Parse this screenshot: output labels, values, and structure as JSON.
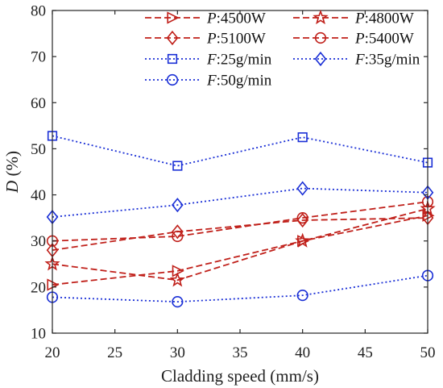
{
  "chart_data": {
    "type": "line",
    "title": "",
    "xlabel": "Cladding speed (mm/s)",
    "ylabel_var": "D",
    "ylabel_unit": " (%)",
    "x": [
      20,
      30,
      40,
      50
    ],
    "xlim": [
      20,
      50
    ],
    "ylim": [
      10,
      80
    ],
    "xticks": [
      "20",
      "25",
      "30",
      "35",
      "40",
      "45",
      "50"
    ],
    "yticks": [
      "10",
      "20",
      "30",
      "40",
      "50",
      "60",
      "70",
      "80"
    ],
    "grid": false,
    "legend_position": "top",
    "series": [
      {
        "prefix": "P",
        "value": ":4500W",
        "color": "#c0201a",
        "dash": "dashed",
        "marker": "triangle-right",
        "values": [
          20.5,
          23.5,
          30.0,
          35.5
        ]
      },
      {
        "prefix": "P",
        "value": ":4800W",
        "color": "#c0201a",
        "dash": "dashed",
        "marker": "star",
        "values": [
          25.0,
          21.5,
          30.0,
          37.0
        ]
      },
      {
        "prefix": "P",
        "value": ":5100W",
        "color": "#c0201a",
        "dash": "dashed",
        "marker": "diamond",
        "values": [
          28.0,
          32.0,
          34.5,
          35.0
        ]
      },
      {
        "prefix": "P",
        "value": ":5400W",
        "color": "#c0201a",
        "dash": "dashed",
        "marker": "circle",
        "values": [
          30.0,
          31.0,
          35.0,
          38.5
        ]
      },
      {
        "prefix": "F",
        "value": ":25g/min",
        "color": "#1a2fd6",
        "dash": "dotted",
        "marker": "square",
        "values": [
          52.8,
          46.3,
          52.5,
          47.0
        ]
      },
      {
        "prefix": "F",
        "value": ":35g/min",
        "color": "#1a2fd6",
        "dash": "dotted",
        "marker": "diamond",
        "values": [
          35.2,
          37.8,
          41.4,
          40.5
        ]
      },
      {
        "prefix": "F",
        "value": ":50g/min",
        "color": "#1a2fd6",
        "dash": "dotted",
        "marker": "circle",
        "values": [
          17.8,
          16.8,
          18.2,
          22.5
        ]
      }
    ]
  }
}
